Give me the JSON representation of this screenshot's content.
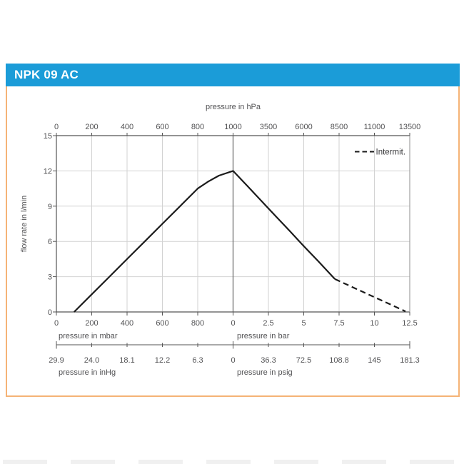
{
  "header": {
    "title": "NPK 09 AC",
    "bg_color": "#1B9CD8",
    "text_color": "#FFFFFF"
  },
  "card": {
    "border_color": "#F5B376",
    "background": "#FFFFFF"
  },
  "chart_data": {
    "type": "line",
    "title": "",
    "axes": {
      "top": {
        "label": "pressure in hPa",
        "tick_labels": [
          "0",
          "200",
          "400",
          "600",
          "800",
          "1000",
          "3500",
          "6000",
          "8500",
          "11000",
          "13500"
        ]
      },
      "left": {
        "label": "flow rate in l/min",
        "tick_labels": [
          "0",
          "3",
          "6",
          "9",
          "12",
          "15"
        ],
        "range": [
          0,
          15
        ]
      },
      "bottom_primary": {
        "left_label": "pressure in mbar",
        "right_label": "pressure in bar",
        "tick_labels": [
          "0",
          "200",
          "400",
          "600",
          "800",
          "0",
          "2.5",
          "5",
          "7.5",
          "10",
          "12.5"
        ]
      },
      "bottom_secondary": {
        "left_label": "pressure in inHg",
        "right_label": "pressure in psig",
        "tick_labels": [
          "29.9",
          "24.0",
          "18.1",
          "12.2",
          "6.3",
          "0",
          "36.3",
          "72.5",
          "108.8",
          "145",
          "181.3"
        ]
      }
    },
    "legend": {
      "label": "Intermit.",
      "line_style": "dashed",
      "position": "top-right"
    },
    "grid": {
      "color": "#D2D2D2",
      "zero_line_color": "#707070",
      "frame_color": "#555555",
      "right_frame_color": "#999999"
    },
    "text_color": "#525254",
    "series": [
      {
        "name": "continuous",
        "style": "solid",
        "color": "#1B1B1B",
        "segments": [
          {
            "unit": "mbar",
            "points": [
              [
                100,
                0
              ],
              [
                200,
                1.5
              ],
              [
                300,
                3.0
              ],
              [
                400,
                4.5
              ],
              [
                500,
                6.0
              ],
              [
                600,
                7.5
              ],
              [
                700,
                9.0
              ],
              [
                800,
                10.5
              ],
              [
                860,
                11.1
              ],
              [
                920,
                11.6
              ],
              [
                1000,
                12.0
              ]
            ]
          },
          {
            "unit": "bar",
            "points": [
              [
                0,
                12.0
              ],
              [
                1,
                10.73
              ],
              [
                2,
                9.45
              ],
              [
                3,
                8.17
              ],
              [
                4,
                6.9
              ],
              [
                5,
                5.6
              ],
              [
                6,
                4.35
              ],
              [
                7.2,
                2.8
              ]
            ]
          }
        ]
      },
      {
        "name": "intermittent",
        "style": "dashed",
        "color": "#1B1B1B",
        "segments": [
          {
            "unit": "bar",
            "points": [
              [
                7.2,
                2.8
              ],
              [
                8.5,
                2.08
              ],
              [
                10,
                1.26
              ],
              [
                11,
                0.71
              ],
              [
                12.2,
                0.05
              ]
            ]
          }
        ]
      }
    ]
  }
}
